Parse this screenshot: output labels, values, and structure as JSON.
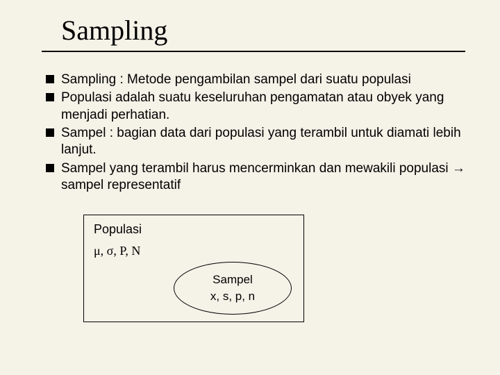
{
  "title": "Sampling",
  "bullets": [
    "Sampling : Metode pengambilan sampel dari suatu populasi",
    "Populasi adalah suatu keseluruhan pengamatan atau obyek yang menjadi perhatian.",
    "Sampel : bagian data dari populasi yang terambil untuk diamati lebih lanjut.",
    "Sampel yang terambil harus mencerminkan dan mewakili populasi → sampel representatif"
  ],
  "diagram": {
    "populasi_label": "Populasi",
    "populasi_params": "μ, σ, P, N",
    "sampel_label": "Sampel",
    "sampel_params": "x, s, p, n"
  },
  "colors": {
    "background": "#f5f2e8",
    "text": "#000000",
    "rule": "#000000"
  },
  "fonts": {
    "title_family": "Times New Roman",
    "title_size_pt": 30,
    "body_family": "Arial",
    "body_size_pt": 14
  }
}
